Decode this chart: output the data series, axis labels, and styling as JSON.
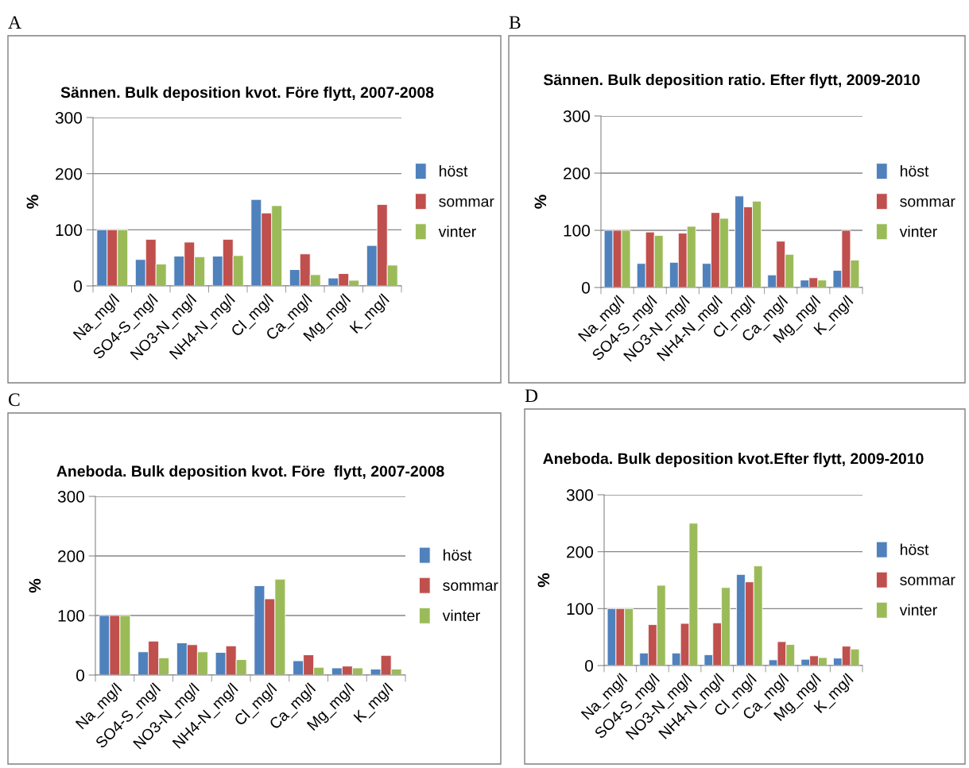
{
  "chart_data": [
    {
      "type": "bar",
      "title": "Sännen. Bulk deposition kvot. Före flytt, 2007-2008",
      "ylabel": "%",
      "annotations": [
        "A"
      ],
      "categories": [
        "Na_mg/l",
        "SO4-S_mg/l",
        "NO3-N_mg/l",
        "NH4-N_mg/l",
        "Cl_mg/l",
        "Ca_mg/l",
        "Mg_mg/l",
        "K_mg/l"
      ],
      "series": [
        {
          "name": "höst",
          "color": "#4f81bd",
          "values": [
            100,
            47,
            53,
            53,
            154,
            29,
            14,
            72
          ]
        },
        {
          "name": "sommar",
          "color": "#c0504d",
          "values": [
            100,
            83,
            78,
            83,
            130,
            57,
            22,
            145
          ]
        },
        {
          "name": "vinter",
          "color": "#9bbb59",
          "values": [
            100,
            39,
            52,
            54,
            143,
            20,
            10,
            37
          ]
        }
      ],
      "ylim": [
        0,
        300
      ],
      "yticks": [
        0,
        100,
        200,
        300
      ],
      "grid": "y",
      "legend": "right"
    },
    {
      "type": "bar",
      "title": "Sännen. Bulk deposition ratio. Efter flytt, 2009-2010",
      "ylabel": "%",
      "annotations": [
        "B"
      ],
      "categories": [
        "Na_mg/l",
        "SO4-S_mg/l",
        "NO3-N_mg/l",
        "NH4-N_mg/l",
        "Cl_mg/l",
        "Ca_mg/l",
        "Mg_mg/l",
        "K_mg/l"
      ],
      "series": [
        {
          "name": "höst",
          "color": "#4f81bd",
          "values": [
            100,
            42,
            44,
            42,
            160,
            22,
            13,
            30
          ]
        },
        {
          "name": "sommar",
          "color": "#c0504d",
          "values": [
            100,
            97,
            95,
            131,
            141,
            81,
            17,
            100
          ]
        },
        {
          "name": "vinter",
          "color": "#9bbb59",
          "values": [
            100,
            91,
            107,
            121,
            151,
            58,
            13,
            48
          ]
        }
      ],
      "ylim": [
        0,
        300
      ],
      "yticks": [
        0,
        100,
        200,
        300
      ],
      "grid": "y",
      "legend": "right"
    },
    {
      "type": "bar",
      "title": "Aneboda. Bulk deposition kvot. Före  flytt, 2007-2008",
      "ylabel": "%",
      "annotations": [
        "C"
      ],
      "categories": [
        "Na_mg/l",
        "SO4-S_mg/l",
        "NO3-N_mg/l",
        "NH4-N_mg/l",
        "Cl_mg/l",
        "Ca_mg/l",
        "Mg_mg/l",
        "K_mg/l"
      ],
      "series": [
        {
          "name": "höst",
          "color": "#4f81bd",
          "values": [
            100,
            39,
            54,
            38,
            150,
            24,
            12,
            10
          ]
        },
        {
          "name": "sommar",
          "color": "#c0504d",
          "values": [
            100,
            57,
            51,
            49,
            128,
            34,
            15,
            33
          ]
        },
        {
          "name": "vinter",
          "color": "#9bbb59",
          "values": [
            100,
            29,
            39,
            26,
            161,
            13,
            12,
            10
          ]
        }
      ],
      "ylim": [
        0,
        300
      ],
      "yticks": [
        0,
        100,
        200,
        300
      ],
      "grid": "y",
      "legend": "right"
    },
    {
      "type": "bar",
      "title": "Aneboda. Bulk deposition kvot.Efter flytt, 2009-2010",
      "ylabel": "%",
      "annotations": [
        "D"
      ],
      "categories": [
        "Na_mg/l",
        "SO4-S_mg/l",
        "NO3-N_mg/l",
        "NH4-N_mg/l",
        "Cl_mg/l",
        "Ca_mg/l",
        "Mg_mg/l",
        "K_mg/l"
      ],
      "series": [
        {
          "name": "höst",
          "color": "#4f81bd",
          "values": [
            100,
            22,
            22,
            19,
            160,
            10,
            11,
            13
          ]
        },
        {
          "name": "sommar",
          "color": "#c0504d",
          "values": [
            100,
            72,
            74,
            75,
            147,
            42,
            17,
            34
          ]
        },
        {
          "name": "vinter",
          "color": "#9bbb59",
          "values": [
            100,
            141,
            250,
            137,
            175,
            37,
            14,
            29
          ]
        }
      ],
      "ylim": [
        0,
        300
      ],
      "yticks": [
        0,
        100,
        200,
        300
      ],
      "grid": "y",
      "legend": "right"
    }
  ]
}
